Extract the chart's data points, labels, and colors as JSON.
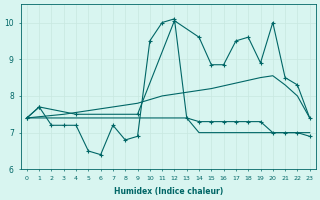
{
  "xlabel": "Humidex (Indice chaleur)",
  "bg_color": "#d8f5f0",
  "grid_color": "#c8e8e0",
  "line_color": "#006666",
  "xlim": [
    -0.5,
    23.5
  ],
  "ylim": [
    6,
    10.5
  ],
  "xticks": [
    0,
    1,
    2,
    3,
    4,
    5,
    6,
    7,
    8,
    9,
    10,
    11,
    12,
    13,
    14,
    15,
    16,
    17,
    18,
    19,
    20,
    21,
    22,
    23
  ],
  "yticks": [
    6,
    7,
    8,
    9,
    10
  ],
  "series": [
    {
      "x": [
        0,
        1,
        2,
        3,
        4,
        5,
        6,
        7,
        8,
        9,
        10,
        11,
        12,
        13,
        14,
        15,
        16,
        17,
        18,
        19,
        20,
        21,
        22,
        23
      ],
      "y": [
        7.4,
        7.4,
        7.4,
        7.4,
        7.4,
        7.4,
        7.4,
        7.4,
        7.4,
        7.4,
        7.4,
        7.4,
        7.4,
        7.4,
        7.0,
        7.0,
        7.0,
        7.0,
        7.0,
        7.0,
        7.0,
        7.0,
        7.0,
        7.0
      ],
      "marker": null,
      "lw": 0.8
    },
    {
      "x": [
        0,
        3,
        5,
        7,
        9,
        11,
        13,
        15,
        17,
        19,
        20,
        21,
        22,
        23
      ],
      "y": [
        7.4,
        7.5,
        7.6,
        7.7,
        7.8,
        8.0,
        8.1,
        8.2,
        8.35,
        8.5,
        8.55,
        8.3,
        8.0,
        7.4
      ],
      "marker": null,
      "lw": 0.8
    },
    {
      "x": [
        0,
        1,
        2,
        3,
        4,
        5,
        6,
        7,
        8,
        9,
        10,
        11,
        12,
        13,
        14,
        15,
        16,
        17,
        18,
        19,
        20,
        21,
        22,
        23
      ],
      "y": [
        7.4,
        7.7,
        7.2,
        7.2,
        7.2,
        6.5,
        6.4,
        7.2,
        6.8,
        6.9,
        9.5,
        10.0,
        10.1,
        7.4,
        7.3,
        7.3,
        7.3,
        7.3,
        7.3,
        7.3,
        7.0,
        7.0,
        7.0,
        6.9
      ],
      "marker": "+",
      "lw": 0.8
    },
    {
      "x": [
        0,
        1,
        4,
        9,
        12,
        14,
        15,
        16,
        17,
        18,
        19,
        20,
        21,
        22,
        23
      ],
      "y": [
        7.4,
        7.7,
        7.5,
        7.5,
        10.05,
        9.6,
        8.85,
        8.85,
        9.5,
        9.6,
        8.9,
        10.0,
        8.5,
        8.3,
        7.4
      ],
      "marker": "+",
      "lw": 0.8
    }
  ]
}
